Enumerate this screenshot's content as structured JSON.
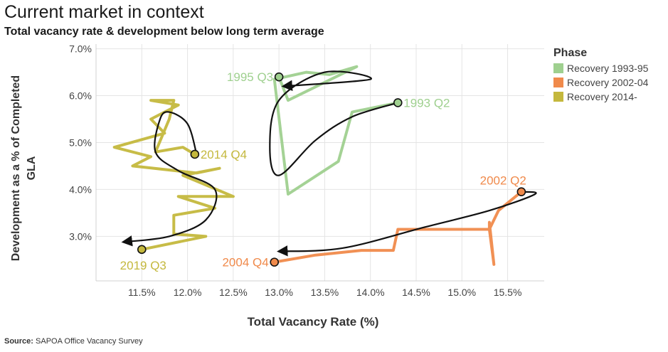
{
  "title": "Current market in context",
  "subtitle": "Total vacancy rate & development below long term average",
  "source_label": "Source:",
  "source_text": "SAPOA Office Vacancy Survey",
  "legend": {
    "title": "Phase",
    "items": [
      {
        "label": "Recovery 1993-95",
        "color": "#9fd08f"
      },
      {
        "label": "Recovery 2002-04",
        "color": "#f08a4b"
      },
      {
        "label": "Recovery 2014-",
        "color": "#c4b83d"
      }
    ]
  },
  "chart_data": {
    "type": "line",
    "xlabel": "Total Vacancy Rate (%)",
    "ylabel": "Development as a % of Completed GLA",
    "xlim": [
      11.0,
      15.9
    ],
    "ylim": [
      2.05,
      7.1
    ],
    "x_ticks": [
      "11.5%",
      "12.0%",
      "12.5%",
      "13.0%",
      "13.5%",
      "14.0%",
      "14.5%",
      "15.0%",
      "15.5%"
    ],
    "x_tick_values": [
      11.5,
      12.0,
      12.5,
      13.0,
      13.5,
      14.0,
      14.5,
      15.0,
      15.5
    ],
    "y_ticks": [
      "3.0%",
      "4.0%",
      "5.0%",
      "6.0%",
      "7.0%"
    ],
    "y_tick_values": [
      3.0,
      4.0,
      5.0,
      6.0,
      7.0
    ],
    "grid": true,
    "series": [
      {
        "name": "Recovery 1993-95",
        "color": "#9fd08f",
        "points": [
          [
            14.3,
            5.85
          ],
          [
            13.8,
            5.65
          ],
          [
            13.65,
            4.6
          ],
          [
            13.1,
            3.9
          ],
          [
            12.95,
            6.35
          ],
          [
            13.3,
            6.5
          ],
          [
            13.55,
            6.45
          ],
          [
            13.85,
            6.62
          ],
          [
            13.1,
            5.9
          ],
          [
            13.0,
            6.4
          ]
        ]
      },
      {
        "name": "Recovery 2002-04",
        "color": "#f08a4b",
        "points": [
          [
            15.65,
            3.95
          ],
          [
            15.4,
            3.55
          ],
          [
            15.3,
            3.15
          ],
          [
            15.3,
            3.3
          ],
          [
            15.35,
            2.4
          ],
          [
            15.3,
            3.15
          ],
          [
            14.3,
            3.15
          ],
          [
            14.25,
            2.7
          ],
          [
            13.9,
            2.7
          ],
          [
            13.4,
            2.6
          ],
          [
            12.95,
            2.45
          ]
        ]
      },
      {
        "name": "Recovery 2014-",
        "color": "#c4b83d",
        "points": [
          [
            12.08,
            4.75
          ],
          [
            11.95,
            4.9
          ],
          [
            11.65,
            4.8
          ],
          [
            11.8,
            5.5
          ],
          [
            11.85,
            5.9
          ],
          [
            11.6,
            5.9
          ],
          [
            11.9,
            5.8
          ],
          [
            11.6,
            5.5
          ],
          [
            11.75,
            5.2
          ],
          [
            11.2,
            4.9
          ],
          [
            11.6,
            4.7
          ],
          [
            11.4,
            4.5
          ],
          [
            12.1,
            4.35
          ],
          [
            12.35,
            4.45
          ],
          [
            11.95,
            4.3
          ],
          [
            12.5,
            3.85
          ],
          [
            11.9,
            3.85
          ],
          [
            12.3,
            3.6
          ],
          [
            11.85,
            3.45
          ],
          [
            11.85,
            3.05
          ],
          [
            12.2,
            3.0
          ],
          [
            11.5,
            2.72
          ]
        ]
      }
    ],
    "annotations": [
      {
        "label": "1993 Q2",
        "x": 14.3,
        "y": 5.85,
        "color": "#9fd08f",
        "anchor": "start"
      },
      {
        "label": "1995 Q3",
        "x": 13.0,
        "y": 6.4,
        "color": "#9fd08f",
        "anchor": "end"
      },
      {
        "label": "2002 Q2",
        "x": 15.65,
        "y": 3.95,
        "color": "#f08a4b",
        "anchor": "end"
      },
      {
        "label": "2004 Q4",
        "x": 12.95,
        "y": 2.45,
        "color": "#f08a4b",
        "anchor": "end"
      },
      {
        "label": "2014 Q4",
        "x": 12.08,
        "y": 4.75,
        "color": "#c4b83d",
        "anchor": "start"
      },
      {
        "label": "2019 Q3",
        "x": 11.5,
        "y": 2.72,
        "color": "#c4b83d",
        "anchor": "middle"
      }
    ],
    "trend_arrows": [
      {
        "points": [
          [
            14.3,
            5.85
          ],
          [
            13.8,
            5.55
          ],
          [
            13.4,
            5.05
          ],
          [
            13.0,
            4.3
          ],
          [
            12.9,
            4.9
          ],
          [
            13.0,
            5.9
          ],
          [
            13.5,
            6.5
          ],
          [
            14.0,
            6.35
          ],
          [
            13.05,
            6.2
          ]
        ]
      },
      {
        "points": [
          [
            15.65,
            3.95
          ],
          [
            15.8,
            3.9
          ],
          [
            15.3,
            3.55
          ],
          [
            14.6,
            3.2
          ],
          [
            13.7,
            2.75
          ],
          [
            13.0,
            2.68
          ]
        ]
      },
      {
        "points": [
          [
            12.1,
            4.75
          ],
          [
            12.0,
            5.4
          ],
          [
            11.8,
            5.65
          ],
          [
            11.7,
            5.5
          ],
          [
            11.65,
            4.8
          ],
          [
            11.9,
            4.4
          ],
          [
            12.3,
            4.0
          ],
          [
            12.2,
            3.35
          ],
          [
            11.8,
            3.0
          ],
          [
            11.3,
            2.88
          ]
        ]
      }
    ]
  }
}
